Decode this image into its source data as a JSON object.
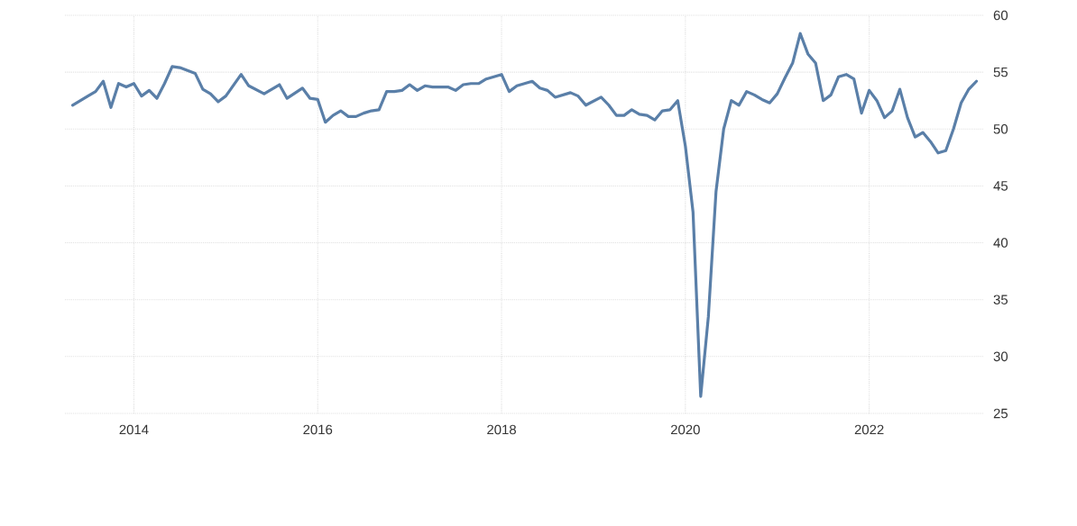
{
  "chart_data": {
    "type": "line",
    "x": [
      "2013-05",
      "2013-06",
      "2013-07",
      "2013-08",
      "2013-09",
      "2013-10",
      "2013-11",
      "2013-12",
      "2014-01",
      "2014-02",
      "2014-03",
      "2014-04",
      "2014-05",
      "2014-06",
      "2014-07",
      "2014-09",
      "2014-10",
      "2014-11",
      "2014-12",
      "2015-01",
      "2015-03",
      "2015-04",
      "2015-06",
      "2015-08",
      "2015-09",
      "2015-11",
      "2015-12",
      "2016-01",
      "2016-02",
      "2016-03",
      "2016-04",
      "2016-05",
      "2016-06",
      "2016-07",
      "2016-08",
      "2016-09",
      "2016-10",
      "2016-11",
      "2016-12",
      "2017-01",
      "2017-02",
      "2017-03",
      "2017-04",
      "2017-06",
      "2017-07",
      "2017-08",
      "2017-09",
      "2017-10",
      "2017-11",
      "2017-12",
      "2018-01",
      "2018-02",
      "2018-03",
      "2018-04",
      "2018-05",
      "2018-06",
      "2018-07",
      "2018-08",
      "2018-10",
      "2018-11",
      "2018-12",
      "2019-02",
      "2019-03",
      "2019-04",
      "2019-05",
      "2019-06",
      "2019-07",
      "2019-08",
      "2019-09",
      "2019-10",
      "2019-11",
      "2019-12",
      "2020-01",
      "2020-02",
      "2020-03",
      "2020-04",
      "2020-05",
      "2020-06",
      "2020-07",
      "2020-08",
      "2020-09",
      "2020-10",
      "2020-11",
      "2020-12",
      "2021-01",
      "2021-02",
      "2021-03",
      "2021-04",
      "2021-05",
      "2021-06",
      "2021-07",
      "2021-08",
      "2021-09",
      "2021-10",
      "2021-11",
      "2021-12",
      "2022-01",
      "2022-02",
      "2022-03",
      "2022-04",
      "2022-05",
      "2022-06",
      "2022-07",
      "2022-08",
      "2022-09",
      "2022-10",
      "2022-11",
      "2022-12",
      "2023-01",
      "2023-02",
      "2023-03"
    ],
    "series": [
      {
        "color": "#5a7fa8",
        "values": [
          52.1,
          52.5,
          52.9,
          53.3,
          54.2,
          51.9,
          54.0,
          53.7,
          54.0,
          52.9,
          53.4,
          52.7,
          54.0,
          55.5,
          55.4,
          54.9,
          53.5,
          53.1,
          52.4,
          52.9,
          54.8,
          53.8,
          53.1,
          53.9,
          52.7,
          53.6,
          52.7,
          52.6,
          50.6,
          51.2,
          51.6,
          51.1,
          51.1,
          51.4,
          51.6,
          51.7,
          53.3,
          53.3,
          53.4,
          53.9,
          53.4,
          53.8,
          53.7,
          53.7,
          53.4,
          53.9,
          54.0,
          54.0,
          54.4,
          54.6,
          54.8,
          53.3,
          53.8,
          54.0,
          54.2,
          53.6,
          53.4,
          52.8,
          53.2,
          52.9,
          52.1,
          52.8,
          52.1,
          51.2,
          51.2,
          51.7,
          51.3,
          51.2,
          50.8,
          51.6,
          51.7,
          52.5,
          48.5,
          42.7,
          26.5,
          33.5,
          44.5,
          50.0,
          52.5,
          52.1,
          53.3,
          53.0,
          52.6,
          52.3,
          53.1,
          54.5,
          55.8,
          58.4,
          56.6,
          55.8,
          52.5,
          53.0,
          54.6,
          54.8,
          54.4,
          51.4,
          53.4,
          52.5,
          51.0,
          51.6,
          53.5,
          51.0,
          49.3,
          49.7,
          48.9,
          47.9,
          48.1,
          50.0,
          52.3,
          53.5,
          54.2
        ]
      }
    ],
    "xlim": [
      "2013-04",
      "2023-04"
    ],
    "xticks": [
      "2014",
      "2016",
      "2018",
      "2020",
      "2022"
    ],
    "ylim": [
      25,
      60
    ],
    "yticks": [
      25,
      30,
      35,
      40,
      45,
      50,
      55,
      60
    ],
    "grid": true,
    "marker": "none",
    "line_style": "solid"
  }
}
